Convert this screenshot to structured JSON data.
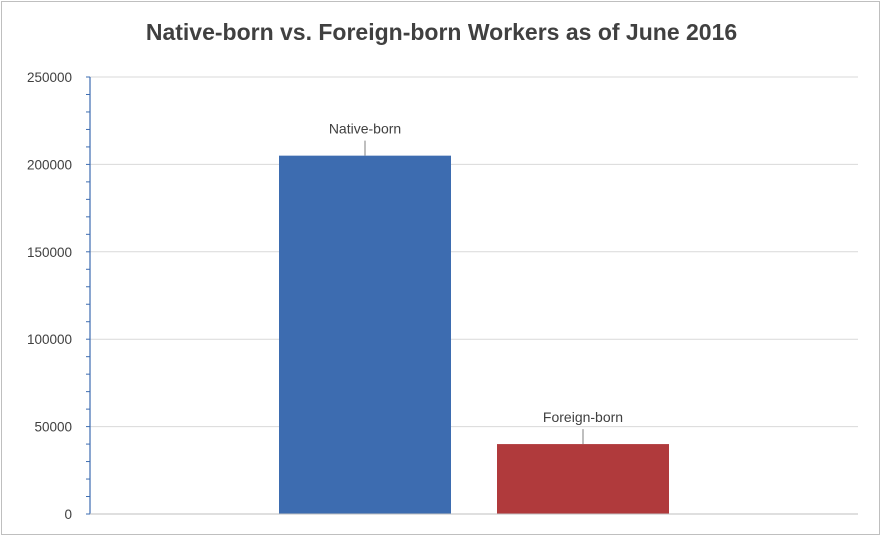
{
  "chart_data": {
    "type": "bar",
    "title": "Native-born vs. Foreign-born Workers as of June 2016",
    "xlabel": "",
    "ylabel": "",
    "categories": [
      "Native-born",
      "Foreign-born"
    ],
    "values": [
      205000,
      40000
    ],
    "bar_colors": [
      "#3d6cb0",
      "#b03a3c"
    ],
    "data_labels": [
      "Native-born",
      "Foreign-born"
    ],
    "ylim": [
      0,
      250000
    ],
    "yticks": [
      0,
      50000,
      100000,
      150000,
      200000,
      250000
    ],
    "ytick_labels": [
      "0",
      "50000",
      "100000",
      "150000",
      "200000",
      "250000"
    ],
    "grid": true,
    "legend": "none"
  }
}
